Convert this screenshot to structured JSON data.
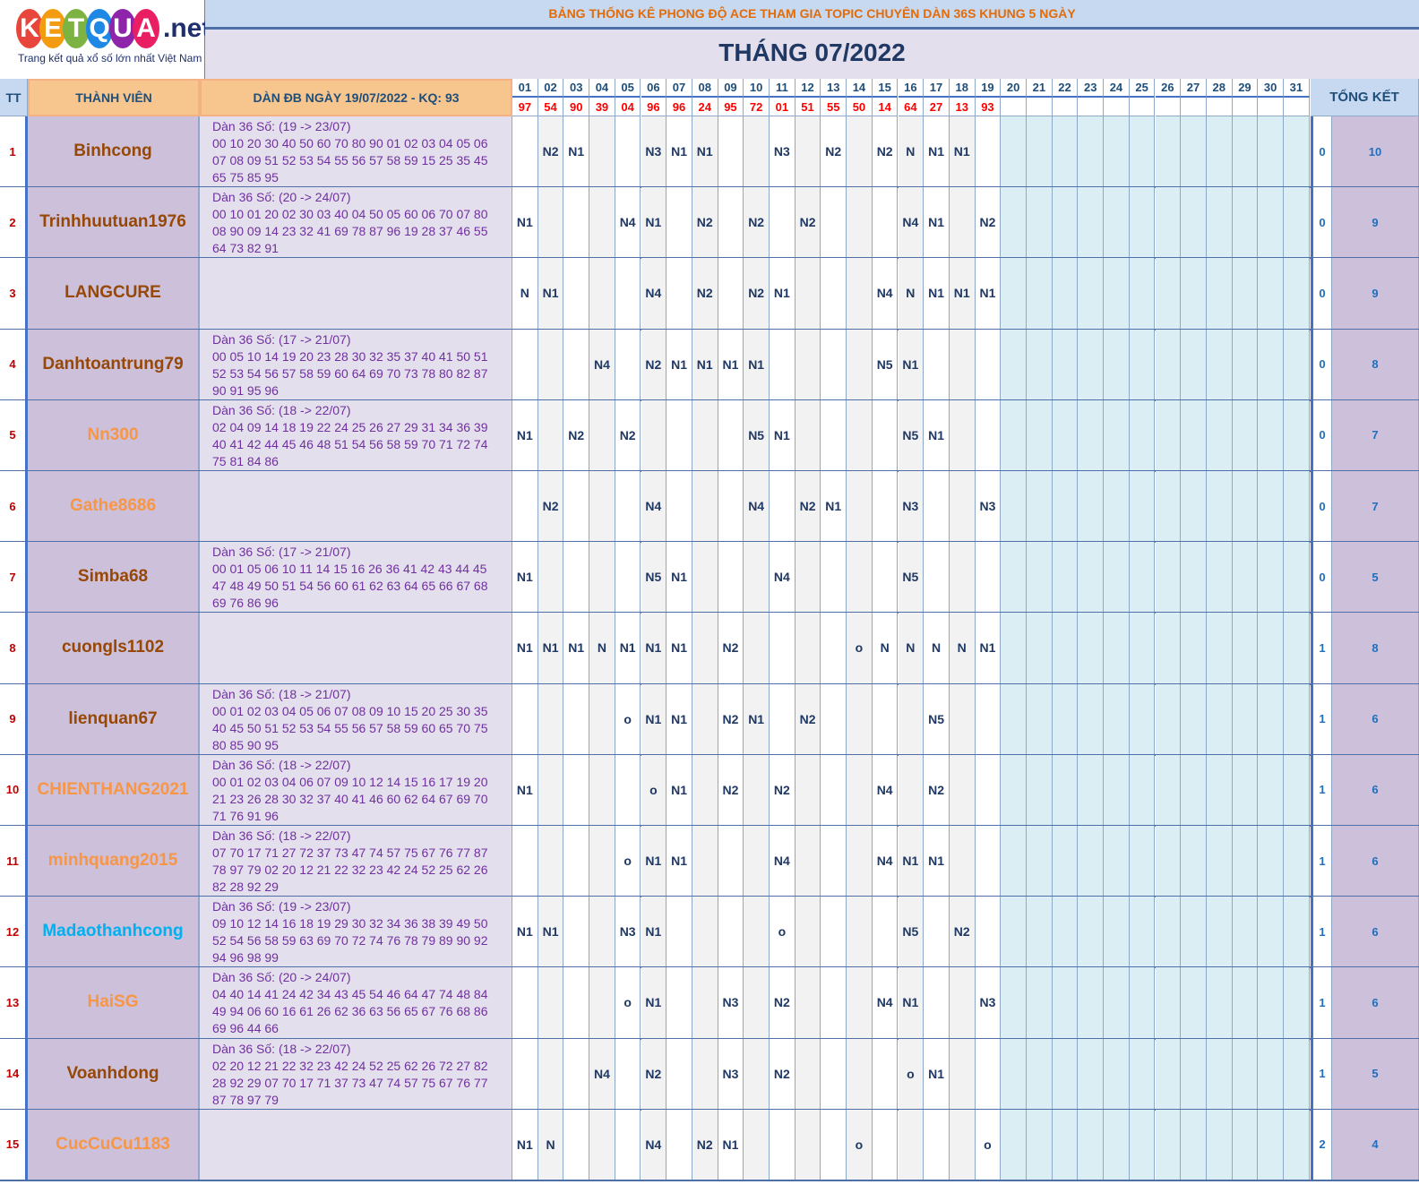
{
  "logo": {
    "letters": [
      "K",
      "E",
      "T",
      "Q",
      "U",
      "A"
    ],
    "colors": [
      "#e8453c",
      "#f39c12",
      "#7cb342",
      "#1e88e5",
      "#8e24aa",
      "#e91e63"
    ],
    "suffix": ".net",
    "tagline": "Trang kết quả xổ số lớn nhất Việt Nam"
  },
  "title": "BẢNG THỐNG KÊ PHONG ĐỘ ACE THAM GIA TOPIC CHUYÊN DÀN 36S KHUNG 5 NGÀY",
  "month": "THÁNG 07/2022",
  "headers": {
    "tt": "TT",
    "member": "THÀNH VIÊN",
    "dan": "DÀN ĐB NGÀY 19/07/2022 - KQ: 93",
    "total": "TỔNG KẾT"
  },
  "days": [
    "01",
    "02",
    "03",
    "04",
    "05",
    "06",
    "07",
    "08",
    "09",
    "10",
    "11",
    "12",
    "13",
    "14",
    "15",
    "16",
    "17",
    "18",
    "19",
    "20",
    "21",
    "22",
    "23",
    "24",
    "25",
    "26",
    "27",
    "28",
    "29",
    "30",
    "31"
  ],
  "results": [
    "97",
    "54",
    "90",
    "39",
    "04",
    "96",
    "96",
    "24",
    "95",
    "72",
    "01",
    "51",
    "55",
    "50",
    "14",
    "64",
    "27",
    "13",
    "93",
    "",
    "",
    "",
    "",
    "",
    "",
    "",
    "",
    "",
    "",
    "",
    ""
  ],
  "rows": [
    {
      "tt": "1",
      "name": "Binhcong",
      "color": "#974706",
      "dan": [
        "Dàn 36 Số: (19 -> 23/07)",
        "00 10 20 30 40 50 60 70 80 90 01 02 03 04 05 06",
        "07 08 09 51 52 53 54 55 56 57 58 59 15 25 35 45",
        "65 75 85 95"
      ],
      "marks": [
        "",
        "N2",
        "N1",
        "",
        "",
        "N3",
        "N1",
        "N1",
        "",
        "",
        "N3",
        "",
        "N2",
        "",
        "N2",
        "N",
        "N1",
        "N1",
        "",
        "",
        "",
        "",
        "",
        "",
        "",
        "",
        "",
        "",
        "",
        "",
        ""
      ],
      "t1": "0",
      "t2": "10"
    },
    {
      "tt": "2",
      "name": "Trinhhuutuan1976",
      "color": "#974706",
      "dan": [
        "Dàn 36 Số: (20 -> 24/07)",
        "00 10 01 20 02 30 03 40 04 50 05 60 06 70 07 80",
        "08 90 09 14 23 32 41 69 78 87 96 19 28 37 46 55",
        "64 73 82 91"
      ],
      "marks": [
        "N1",
        "",
        "",
        "",
        "N4",
        "N1",
        "",
        "N2",
        "",
        "N2",
        "",
        "N2",
        "",
        "",
        "",
        "N4",
        "N1",
        "",
        "N2",
        "",
        "",
        "",
        "",
        "",
        "",
        "",
        "",
        "",
        "",
        "",
        ""
      ],
      "t1": "0",
      "t2": "9"
    },
    {
      "tt": "3",
      "name": "LANGCURE",
      "color": "#974706",
      "dan": [],
      "marks": [
        "N",
        "N1",
        "",
        "",
        "",
        "N4",
        "",
        "N2",
        "",
        "N2",
        "N1",
        "",
        "",
        "",
        "N4",
        "N",
        "N1",
        "N1",
        "N1",
        "",
        "",
        "",
        "",
        "",
        "",
        "",
        "",
        "",
        "",
        "",
        ""
      ],
      "t1": "0",
      "t2": "9"
    },
    {
      "tt": "4",
      "name": "Danhtoantrung79",
      "color": "#974706",
      "dan": [
        "Dàn 36 Số: (17 -> 21/07)",
        "00 05 10 14 19 20 23 28 30 32 35 37 40 41 50 51",
        "52 53 54 56 57 58 59 60 64 69 70 73 78 80 82 87",
        "90 91 95 96"
      ],
      "marks": [
        "",
        "",
        "",
        "N4",
        "",
        "N2",
        "N1",
        "N1",
        "N1",
        "N1",
        "",
        "",
        "",
        "",
        "N5",
        "N1",
        "",
        "",
        "",
        "",
        "",
        "",
        "",
        "",
        "",
        "",
        "",
        "",
        "",
        "",
        ""
      ],
      "t1": "0",
      "t2": "8"
    },
    {
      "tt": "5",
      "name": "Nn300",
      "color": "#f79646",
      "dan": [
        "Dàn 36 Số: (18 -> 22/07)",
        "02 04 09 14 18 19 22 24 25 26 27 29 31 34 36 39",
        "40 41 42 44 45 46 48 51 54 56 58 59 70 71 72 74",
        "75 81 84 86"
      ],
      "marks": [
        "N1",
        "",
        "N2",
        "",
        "N2",
        "",
        "",
        "",
        "",
        "N5",
        "N1",
        "",
        "",
        "",
        "",
        "N5",
        "N1",
        "",
        "",
        "",
        "",
        "",
        "",
        "",
        "",
        "",
        "",
        "",
        "",
        "",
        ""
      ],
      "t1": "0",
      "t2": "7"
    },
    {
      "tt": "6",
      "name": "Gathe8686",
      "color": "#f79646",
      "dan": [],
      "marks": [
        "",
        "N2",
        "",
        "",
        "",
        "N4",
        "",
        "",
        "",
        "N4",
        "",
        "N2",
        "N1",
        "",
        "",
        "N3",
        "",
        "",
        "N3",
        "",
        "",
        "",
        "",
        "",
        "",
        "",
        "",
        "",
        "",
        "",
        ""
      ],
      "t1": "0",
      "t2": "7"
    },
    {
      "tt": "7",
      "name": "Simba68",
      "color": "#974706",
      "dan": [
        "Dàn 36 Số: (17 -> 21/07)",
        "00 01 05 06 10 11 14 15 16 26 36 41 42 43 44 45",
        "47 48 49 50 51 54 56 60 61 62 63 64 65 66 67 68",
        "69 76 86 96"
      ],
      "marks": [
        "N1",
        "",
        "",
        "",
        "",
        "N5",
        "N1",
        "",
        "",
        "",
        "N4",
        "",
        "",
        "",
        "",
        "N5",
        "",
        "",
        "",
        "",
        "",
        "",
        "",
        "",
        "",
        "",
        "",
        "",
        "",
        "",
        ""
      ],
      "t1": "0",
      "t2": "5"
    },
    {
      "tt": "8",
      "name": "cuongls1102",
      "color": "#974706",
      "dan": [],
      "marks": [
        "N1",
        "N1",
        "N1",
        "N",
        "N1",
        "N1",
        "N1",
        "",
        "N2",
        "",
        "",
        "",
        "",
        "o",
        "N",
        "N",
        "N",
        "N",
        "N1",
        "",
        "",
        "",
        "",
        "",
        "",
        "",
        "",
        "",
        "",
        "",
        ""
      ],
      "t1": "1",
      "t2": "8"
    },
    {
      "tt": "9",
      "name": "lienquan67",
      "color": "#974706",
      "dan": [
        "Dàn 36 Số: (18 -> 21/07)",
        "00 01 02 03 04 05 06 07 08 09 10 15 20 25 30 35",
        "40 45 50 51 52 53 54 55 56 57 58 59 60 65 70 75",
        "80 85 90 95"
      ],
      "marks": [
        "",
        "",
        "",
        "",
        "o",
        "N1",
        "N1",
        "",
        "N2",
        "N1",
        "",
        "N2",
        "",
        "",
        "",
        "",
        "N5",
        "",
        "",
        "",
        "",
        "",
        "",
        "",
        "",
        "",
        "",
        "",
        "",
        "",
        ""
      ],
      "t1": "1",
      "t2": "6"
    },
    {
      "tt": "10",
      "name": "CHIENTHANG2021",
      "color": "#f79646",
      "dan": [
        "Dàn 36 Số: (18 -> 22/07)",
        "00 01 02 03 04 06 07 09 10 12 14 15 16 17 19 20",
        "21 23 26 28 30 32 37 40 41 46 60 62 64 67 69 70",
        "71 76 91 96"
      ],
      "marks": [
        "N1",
        "",
        "",
        "",
        "",
        "o",
        "N1",
        "",
        "N2",
        "",
        "N2",
        "",
        "",
        "",
        "N4",
        "",
        "N2",
        "",
        "",
        "",
        "",
        "",
        "",
        "",
        "",
        "",
        "",
        "",
        "",
        "",
        ""
      ],
      "t1": "1",
      "t2": "6"
    },
    {
      "tt": "11",
      "name": "minhquang2015",
      "color": "#f79646",
      "dan": [
        "Dàn 36 Số: (18 -> 22/07)",
        "07 70 17 71 27 72 37 73 47 74 57 75 67 76 77 87",
        "78 97 79 02 20 12 21 22 32 23 42 24 52 25 62 26",
        "82 28 92 29"
      ],
      "marks": [
        "",
        "",
        "",
        "",
        "o",
        "N1",
        "N1",
        "",
        "",
        "",
        "N4",
        "",
        "",
        "",
        "N4",
        "N1",
        "N1",
        "",
        "",
        "",
        "",
        "",
        "",
        "",
        "",
        "",
        "",
        "",
        "",
        "",
        ""
      ],
      "t1": "1",
      "t2": "6"
    },
    {
      "tt": "12",
      "name": "Madaothanhcong",
      "color": "#00b0f0",
      "dan": [
        "Dàn 36 Số: (19 -> 23/07)",
        "09 10 12 14 16 18 19 29 30 32 34 36 38 39 49 50",
        "52 54 56 58 59 63 69 70 72 74 76 78 79 89 90 92",
        "94 96 98 99"
      ],
      "marks": [
        "N1",
        "N1",
        "",
        "",
        "N3",
        "N1",
        "",
        "",
        "",
        "",
        "o",
        "",
        "",
        "",
        "",
        "N5",
        "",
        "N2",
        "",
        "",
        "",
        "",
        "",
        "",
        "",
        "",
        "",
        "",
        "",
        "",
        ""
      ],
      "t1": "1",
      "t2": "6"
    },
    {
      "tt": "13",
      "name": "HaiSG",
      "color": "#f79646",
      "dan": [
        "Dàn 36 Số: (20 -> 24/07)",
        "04 40 14 41 24 42 34 43 45 54 46 64 47 74 48 84",
        "49 94 06 60 16 61 26 62 36 63 56 65 67 76 68 86",
        "69 96 44 66"
      ],
      "marks": [
        "",
        "",
        "",
        "",
        "o",
        "N1",
        "",
        "",
        "N3",
        "",
        "N2",
        "",
        "",
        "",
        "N4",
        "N1",
        "",
        "",
        "N3",
        "",
        "",
        "",
        "",
        "",
        "",
        "",
        "",
        "",
        "",
        "",
        ""
      ],
      "t1": "1",
      "t2": "6"
    },
    {
      "tt": "14",
      "name": "Voanhdong",
      "color": "#974706",
      "dan": [
        "Dàn 36 Số: (18 -> 22/07)",
        "02 20 12 21 22 32 23 42 24 52 25 62 26 72 27 82",
        "28 92 29 07 70 17 71 37 73 47 74 57 75 67 76 77",
        "87 78 97 79"
      ],
      "marks": [
        "",
        "",
        "",
        "N4",
        "",
        "N2",
        "",
        "",
        "N3",
        "",
        "N2",
        "",
        "",
        "",
        "",
        "o",
        "N1",
        "",
        "",
        "",
        "",
        "",
        "",
        "",
        "",
        "",
        "",
        "",
        "",
        "",
        ""
      ],
      "t1": "1",
      "t2": "5"
    },
    {
      "tt": "15",
      "name": "CucCuCu1183",
      "color": "#f79646",
      "dan": [],
      "marks": [
        "N1",
        "N",
        "",
        "",
        "",
        "N4",
        "",
        "N2",
        "N1",
        "",
        "",
        "",
        "",
        "o",
        "",
        "",
        "",
        "",
        "o",
        "",
        "",
        "",
        "",
        "",
        "",
        "",
        "",
        "",
        "",
        "",
        ""
      ],
      "t1": "2",
      "t2": "4"
    }
  ]
}
